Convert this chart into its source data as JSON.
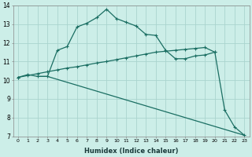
{
  "xlabel": "Humidex (Indice chaleur)",
  "bg_color": "#cceee8",
  "grid_color": "#aad4ce",
  "line_color": "#1a6e62",
  "xlim_min": -0.5,
  "xlim_max": 23.5,
  "ylim_min": 7,
  "ylim_max": 14,
  "yticks": [
    7,
    8,
    9,
    10,
    11,
    12,
    13,
    14
  ],
  "xticks": [
    0,
    1,
    2,
    3,
    4,
    5,
    6,
    7,
    8,
    9,
    10,
    11,
    12,
    13,
    14,
    15,
    16,
    17,
    18,
    19,
    20,
    21,
    22,
    23
  ],
  "series1_x": [
    0,
    1,
    2,
    3,
    4,
    5,
    6,
    7,
    8,
    9,
    10,
    11,
    12,
    13,
    14,
    15,
    16,
    17,
    18,
    19,
    20,
    21,
    22,
    23
  ],
  "series1_y": [
    10.15,
    10.3,
    10.2,
    10.2,
    11.6,
    11.8,
    12.85,
    13.05,
    13.35,
    13.8,
    13.3,
    13.1,
    12.9,
    12.45,
    12.4,
    11.6,
    11.15,
    11.15,
    11.3,
    11.35,
    11.5,
    8.4,
    7.5,
    7.05
  ],
  "series2_x": [
    0,
    1,
    2,
    3,
    4,
    5,
    6,
    7,
    8,
    9,
    10,
    11,
    12,
    13,
    14,
    15,
    16,
    17,
    18,
    19,
    20
  ],
  "series2_y": [
    10.15,
    10.25,
    10.35,
    10.45,
    10.55,
    10.65,
    10.72,
    10.82,
    10.92,
    11.0,
    11.1,
    11.2,
    11.3,
    11.4,
    11.5,
    11.55,
    11.6,
    11.65,
    11.7,
    11.75,
    11.5
  ],
  "series3_x": [
    2,
    3,
    23
  ],
  "series3_y": [
    10.2,
    10.2,
    7.05
  ]
}
